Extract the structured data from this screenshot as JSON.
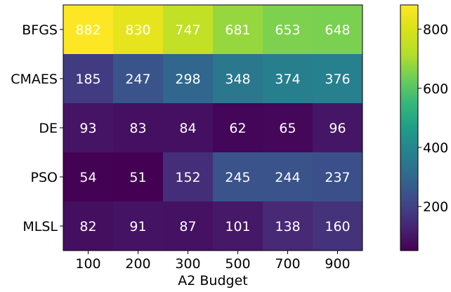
{
  "chart_data": {
    "type": "heatmap",
    "title": "",
    "xlabel": "A2 Budget",
    "ylabel": "",
    "x_categories": [
      "100",
      "200",
      "300",
      "500",
      "700",
      "900"
    ],
    "y_categories": [
      "BFGS",
      "CMAES",
      "DE",
      "PSO",
      "MLSL"
    ],
    "values": [
      [
        882,
        830,
        747,
        681,
        653,
        648
      ],
      [
        185,
        247,
        298,
        348,
        374,
        376
      ],
      [
        93,
        83,
        84,
        62,
        65,
        96
      ],
      [
        54,
        51,
        152,
        245,
        244,
        237
      ],
      [
        82,
        91,
        87,
        101,
        138,
        160
      ]
    ],
    "colormap": "viridis",
    "color_range": [
      51,
      882
    ],
    "colorbar_ticks": [
      200,
      400,
      600,
      800
    ],
    "cell_label_color": "#ffffff"
  }
}
